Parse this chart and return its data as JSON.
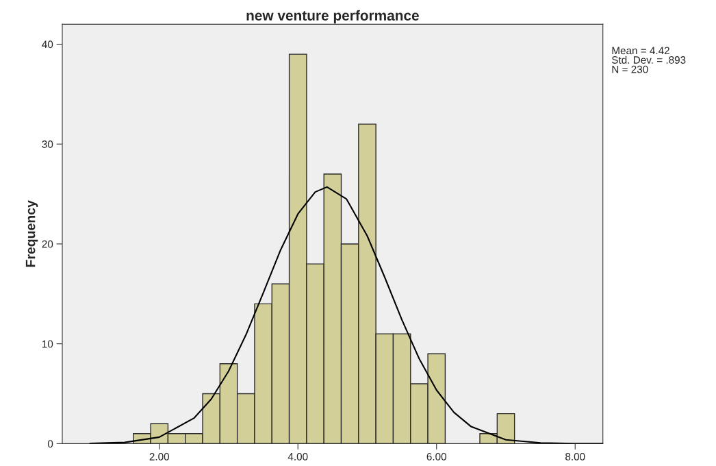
{
  "chart_data": {
    "type": "histogram",
    "title": "new venture performance",
    "ylabel": "Frequency",
    "bins": [
      1.625,
      1.875,
      2.125,
      2.375,
      2.625,
      2.875,
      3.125,
      3.375,
      3.625,
      3.875,
      4.125,
      4.375,
      4.625,
      4.875,
      5.125,
      5.375,
      5.625,
      5.875,
      6.125,
      6.375,
      6.625,
      6.875,
      7.125
    ],
    "values": [
      1,
      2,
      1,
      1,
      5,
      8,
      5,
      14,
      16,
      39,
      18,
      27,
      20,
      32,
      11,
      11,
      6,
      9,
      0,
      0,
      1,
      3
    ],
    "color": "#d3cf98",
    "series": [
      {
        "type": "line",
        "color": "#000000",
        "x": [
          1,
          1.5,
          2,
          2.5,
          2.75,
          3,
          3.25,
          3.5,
          3.75,
          4,
          4.25,
          4.42,
          4.7,
          5,
          5.25,
          5.5,
          5.75,
          6,
          6.25,
          6.5,
          7,
          7.5,
          8,
          8.4
        ],
        "values": [
          0.02,
          0.12,
          0.65,
          2.55,
          4.47,
          7.26,
          10.9,
          15.1,
          19.4,
          23.0,
          25.2,
          25.7,
          24.5,
          20.8,
          16.7,
          12.4,
          8.5,
          5.36,
          3.14,
          1.7,
          0.39,
          0.07,
          0.01,
          0.0
        ]
      }
    ],
    "xlim": [
      0.6,
      8.4
    ],
    "ylim": [
      0,
      42
    ],
    "xticks": [
      {
        "value": 2,
        "label": "2.00"
      },
      {
        "value": 4,
        "label": "4.00"
      },
      {
        "value": 6,
        "label": "6.00"
      },
      {
        "value": 8,
        "label": "8.00"
      }
    ],
    "yticks": [
      0,
      10,
      20,
      30,
      40
    ],
    "annotations": [
      "Mean = 4.42",
      "Std. Dev. = .893",
      "N = 230"
    ],
    "grid": false,
    "legend": false
  }
}
